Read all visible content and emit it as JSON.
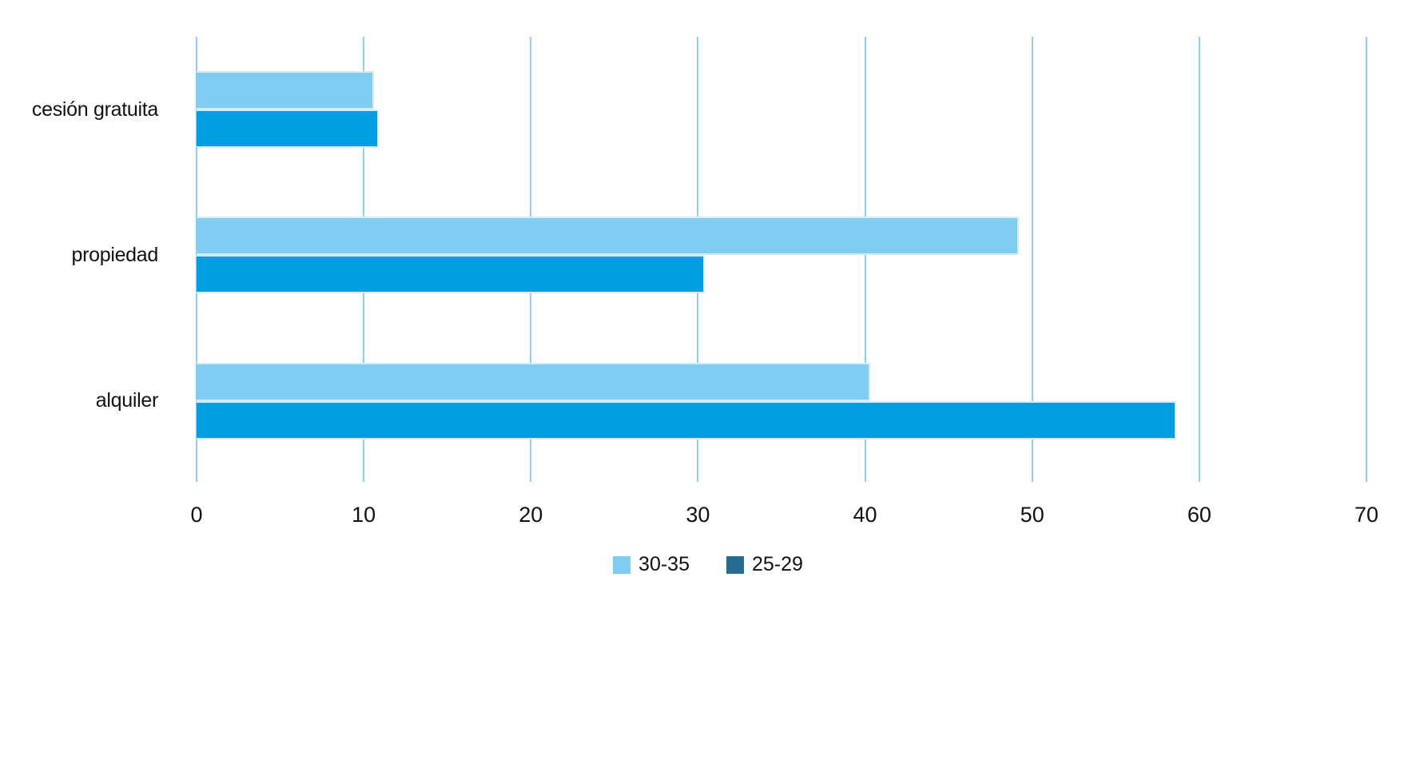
{
  "chart_data": {
    "type": "bar",
    "orientation": "horizontal",
    "title": "",
    "xlabel": "",
    "ylabel": "",
    "categories": [
      "cesión gratuita",
      "propiedad",
      "alquiler"
    ],
    "series": [
      {
        "name": "30-35",
        "color": "#7fcef2",
        "legend_color": "#7fcef2",
        "values": [
          10.6,
          49.2,
          40.3
        ]
      },
      {
        "name": "25-29",
        "color": "#009ee0",
        "legend_color": "#266c90",
        "values": [
          10.9,
          30.4,
          58.6
        ]
      }
    ],
    "xlim": [
      0,
      70
    ],
    "xticks": [
      0,
      10,
      20,
      30,
      40,
      50,
      60,
      70
    ],
    "grid": true,
    "gridline_color": "#8ad2f0",
    "bar_border_color": "#d3ecfa",
    "background_color": "#ffffff",
    "text_color": "#111111",
    "legend_position": "bottom"
  }
}
